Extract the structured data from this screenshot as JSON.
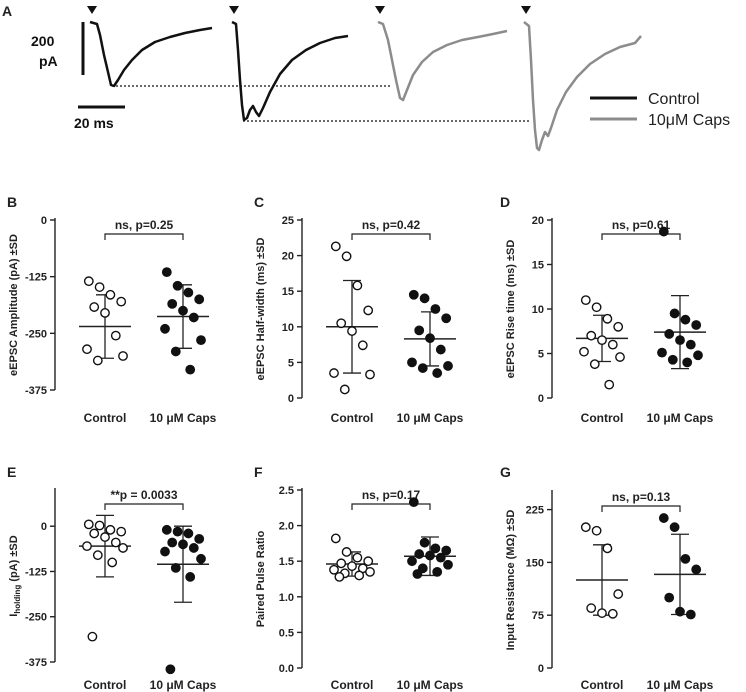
{
  "panelA": {
    "label": "A",
    "scale_amp": "200",
    "scale_amp_unit": "pA",
    "scale_time": "20 ms",
    "legend": [
      {
        "name": "Control",
        "color": "#111111"
      },
      {
        "name": "10μM Caps",
        "color": "#8c8c8c"
      }
    ]
  },
  "colors": {
    "control_trace": "#111111",
    "caps_trace": "#8c8c8c",
    "axis": "#222222"
  },
  "chart_data": [
    {
      "id": "B",
      "type": "scatter",
      "panel_label": "B",
      "ylabel": "eEPSC Amplitude (pA) ±SD",
      "ylim": [
        -375,
        0
      ],
      "yticks": [
        0,
        -125,
        -250,
        -375
      ],
      "yticks_label": [
        "0",
        "-125",
        "-250",
        "-375"
      ],
      "categories": [
        "Control",
        "10 μM Caps"
      ],
      "significance": "ns, p=0.25",
      "series": [
        {
          "name": "Control",
          "filled": false,
          "mean": -235,
          "sd": 70,
          "values": [
            -135,
            -148,
            -165,
            -180,
            -192,
            -205,
            -255,
            -285,
            -300,
            -310
          ]
        },
        {
          "name": "10 μM Caps",
          "filled": true,
          "mean": -213,
          "sd": 70,
          "values": [
            -115,
            -145,
            -160,
            -175,
            -185,
            -200,
            -215,
            -240,
            -265,
            -290,
            -330
          ]
        }
      ]
    },
    {
      "id": "C",
      "type": "scatter",
      "panel_label": "C",
      "ylabel": "eEPSC Half-width (ms) ±SD",
      "ylim": [
        0,
        25
      ],
      "yticks": [
        0,
        5,
        10,
        15,
        20,
        25
      ],
      "yticks_label": [
        "0",
        "5",
        "10",
        "15",
        "20",
        "25"
      ],
      "categories": [
        "Control",
        "10 μM Caps"
      ],
      "significance": "ns, p=0.42",
      "series": [
        {
          "name": "Control",
          "filled": false,
          "mean": 10.0,
          "sd": 6.5,
          "values": [
            21.3,
            19.9,
            15.8,
            12.3,
            10.5,
            9.4,
            7.4,
            3.5,
            3.3,
            1.2
          ]
        },
        {
          "name": "10 μM Caps",
          "filled": true,
          "mean": 8.3,
          "sd": 3.8,
          "values": [
            14.5,
            14.0,
            12.5,
            11.2,
            9.5,
            8.4,
            6.8,
            5.0,
            4.5,
            4.2,
            3.5
          ]
        }
      ]
    },
    {
      "id": "D",
      "type": "scatter",
      "panel_label": "D",
      "ylabel": "eEPSC Rise time (ms) ±SD",
      "ylim": [
        0,
        20
      ],
      "yticks": [
        0,
        5,
        10,
        15,
        20
      ],
      "yticks_label": [
        "0",
        "5",
        "10",
        "15",
        "20"
      ],
      "categories": [
        "Control",
        "10 μM Caps"
      ],
      "significance": "ns, p=0.61",
      "series": [
        {
          "name": "Control",
          "filled": false,
          "mean": 6.7,
          "sd": 2.6,
          "values": [
            11.0,
            10.2,
            8.9,
            8.0,
            7.0,
            6.5,
            6.0,
            5.2,
            4.6,
            3.8,
            1.5
          ]
        },
        {
          "name": "10 μM Caps",
          "filled": true,
          "mean": 7.4,
          "sd": 4.1,
          "values": [
            18.7,
            9.5,
            8.8,
            8.2,
            7.2,
            6.5,
            6.0,
            5.1,
            4.8,
            4.3,
            4.0
          ]
        }
      ]
    },
    {
      "id": "E",
      "type": "scatter",
      "panel_label": "E",
      "ylabel_main": "I",
      "ylabel_sub": "holding",
      "ylabel_rest": " (pA) ±SD",
      "ylim": [
        -375,
        100
      ],
      "yticks": [
        0,
        -125,
        -250,
        -375
      ],
      "yticks_label": [
        "0",
        "-125",
        "-250",
        "-375"
      ],
      "categories": [
        "Control",
        "10 μM Caps"
      ],
      "significance": "**p = 0.0033",
      "series": [
        {
          "name": "Control",
          "filled": false,
          "mean": -55,
          "sd": 85,
          "values": [
            5,
            2,
            -10,
            -15,
            -20,
            -30,
            -45,
            -55,
            -60,
            -80,
            -100,
            -305
          ]
        },
        {
          "name": "10 μM Caps",
          "filled": true,
          "mean": -105,
          "sd": 105,
          "values": [
            -10,
            -15,
            -20,
            -35,
            -45,
            -50,
            -60,
            -70,
            -90,
            -115,
            -140,
            -395
          ]
        }
      ]
    },
    {
      "id": "F",
      "type": "scatter",
      "panel_label": "F",
      "ylabel": "Paired Pulse Ratio",
      "ylim": [
        0,
        2.5
      ],
      "yticks": [
        0.0,
        0.5,
        1.0,
        1.5,
        2.0,
        2.5
      ],
      "yticks_label": [
        "0.0",
        "0.5",
        "1.0",
        "1.5",
        "2.0",
        "2.5"
      ],
      "categories": [
        "Control",
        "10 μM Caps"
      ],
      "significance": "ns, p=0.17",
      "series": [
        {
          "name": "Control",
          "filled": false,
          "mean": 1.46,
          "sd": 0.17,
          "values": [
            1.82,
            1.63,
            1.55,
            1.5,
            1.47,
            1.43,
            1.4,
            1.38,
            1.35,
            1.33,
            1.3,
            1.28
          ]
        },
        {
          "name": "10 μM Caps",
          "filled": true,
          "mean": 1.57,
          "sd": 0.27,
          "values": [
            2.33,
            1.76,
            1.68,
            1.65,
            1.6,
            1.58,
            1.55,
            1.5,
            1.45,
            1.4,
            1.35,
            1.32
          ]
        }
      ]
    },
    {
      "id": "G",
      "type": "scatter",
      "panel_label": "G",
      "ylabel": "Input Resistance (MΩ) ±SD",
      "ylim": [
        0,
        250
      ],
      "yticks": [
        0,
        75,
        150,
        225
      ],
      "yticks_label": [
        "0",
        "75",
        "150",
        "225"
      ],
      "categories": [
        "Control",
        "10 μM Caps"
      ],
      "significance": "ns, p=0.13",
      "series": [
        {
          "name": "Control",
          "filled": false,
          "mean": 125,
          "sd": 50,
          "values": [
            200,
            195,
            170,
            105,
            85,
            78,
            77
          ]
        },
        {
          "name": "10 μM Caps",
          "filled": true,
          "mean": 133,
          "sd": 57,
          "values": [
            213,
            200,
            155,
            140,
            100,
            80,
            76
          ]
        }
      ]
    }
  ]
}
